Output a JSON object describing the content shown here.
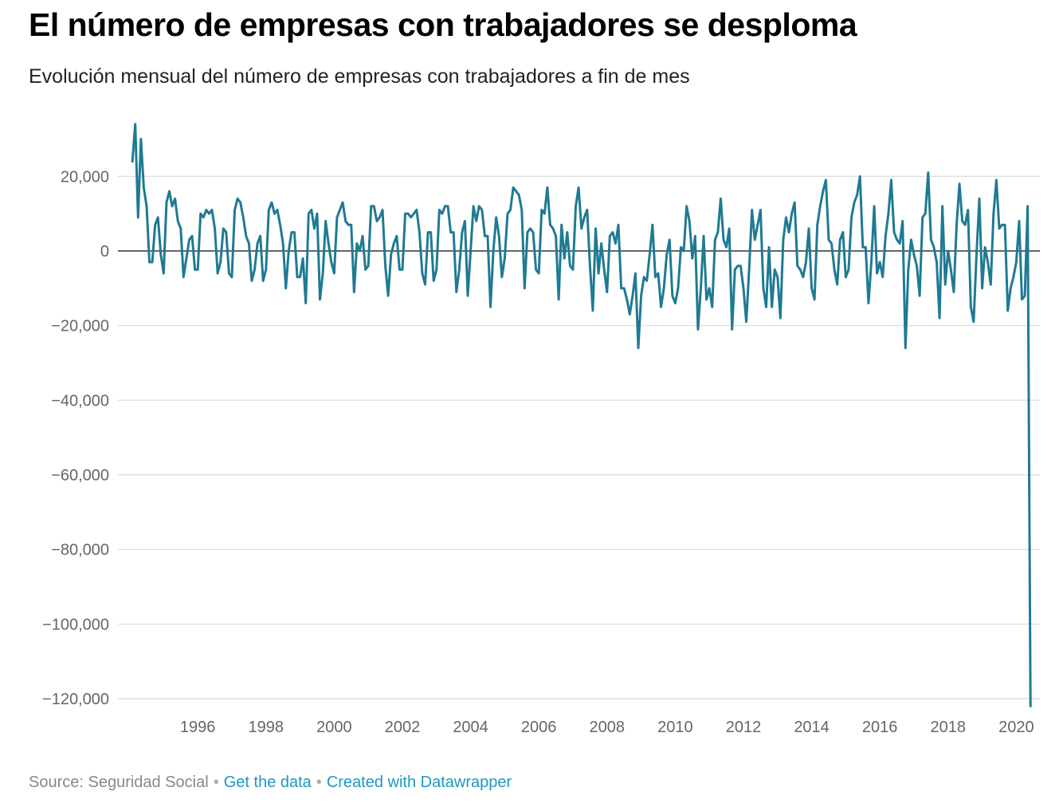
{
  "title": "El número de empresas con trabajadores se desploma",
  "subtitle": "Evolución mensual del número de empresas con trabajadores a fin de mes",
  "footer": {
    "source": "Source: Seguridad Social",
    "get_data": "Get the data",
    "created_with": "Created with Datawrapper",
    "separator": "•"
  },
  "colors": {
    "line": "#1f7a93",
    "grid": "#d9d9d9",
    "zero_line": "#333333",
    "tick_label": "#666666",
    "link": "#1d98c0"
  },
  "chart_data": {
    "type": "line",
    "title": "El número de empresas con trabajadores se desploma",
    "subtitle": "Evolución mensual del número de empresas con trabajadores a fin de mes",
    "xlabel": "",
    "ylabel": "",
    "xlim": [
      1994.08,
      2020.33
    ],
    "ylim": [
      -122000,
      34000
    ],
    "grid": true,
    "legend": "none",
    "y_ticks": [
      20000,
      0,
      -20000,
      -40000,
      -60000,
      -80000,
      -100000,
      -120000
    ],
    "y_tick_labels": [
      "20,000",
      "0",
      "−20,000",
      "−40,000",
      "−60,000",
      "−80,000",
      "−100,000",
      "−120,000"
    ],
    "x_ticks": [
      1996,
      1998,
      2000,
      2002,
      2004,
      2006,
      2008,
      2010,
      2012,
      2014,
      2016,
      2018,
      2020
    ],
    "x_tick_labels": [
      "1996",
      "1998",
      "2000",
      "2002",
      "2004",
      "2006",
      "2008",
      "2010",
      "2012",
      "2014",
      "2016",
      "2018",
      "2020"
    ],
    "series": [
      {
        "x_start": "1994-02",
        "frequency": "monthly",
        "values": [
          24000,
          34000,
          9000,
          30000,
          17000,
          12000,
          -3000,
          -3000,
          7000,
          9000,
          -1000,
          -6000,
          13000,
          16000,
          12000,
          14000,
          8000,
          6000,
          -7000,
          -2000,
          3000,
          4000,
          -5000,
          -5000,
          10000,
          9000,
          11000,
          10000,
          11000,
          6000,
          -6000,
          -3000,
          6000,
          5000,
          -6000,
          -7000,
          11000,
          14000,
          13000,
          9000,
          4000,
          2000,
          -8000,
          -5000,
          2000,
          4000,
          -8000,
          -5000,
          11000,
          13000,
          10000,
          11000,
          7000,
          2000,
          -10000,
          0,
          5000,
          5000,
          -7000,
          -7000,
          -2000,
          -14000,
          10000,
          11000,
          6000,
          10000,
          -13000,
          -6000,
          8000,
          2000,
          -3000,
          -6000,
          9000,
          11000,
          13000,
          8000,
          7000,
          7000,
          -11000,
          2000,
          0,
          4000,
          -5000,
          -4000,
          12000,
          12000,
          8000,
          9000,
          11000,
          -4000,
          -12000,
          -1000,
          2000,
          4000,
          -5000,
          -5000,
          10000,
          10000,
          9000,
          10000,
          11000,
          5000,
          -6000,
          -9000,
          5000,
          5000,
          -8000,
          -5000,
          11000,
          10000,
          12000,
          12000,
          5000,
          5000,
          -11000,
          -5000,
          5000,
          8000,
          -12000,
          0,
          12000,
          8000,
          12000,
          11000,
          4000,
          4000,
          -15000,
          0,
          9000,
          4000,
          -7000,
          -2000,
          10000,
          11000,
          17000,
          16000,
          15000,
          11000,
          -10000,
          5000,
          6000,
          5000,
          -5000,
          -6000,
          11000,
          10000,
          17000,
          7000,
          6000,
          4000,
          -13000,
          7000,
          -2000,
          5000,
          -4000,
          -5000,
          12000,
          17000,
          6000,
          9000,
          11000,
          -4000,
          -16000,
          6000,
          -6000,
          2000,
          -5000,
          -11000,
          4000,
          5000,
          2000,
          7000,
          -10000,
          -10000,
          -13000,
          -17000,
          -12000,
          -6000,
          -26000,
          -12000,
          -7000,
          -8000,
          -1000,
          7000,
          -7000,
          -6000,
          -15000,
          -10000,
          -1000,
          3000,
          -12000,
          -14000,
          -10000,
          1000,
          0,
          12000,
          8000,
          -2000,
          4000,
          -21000,
          -10000,
          4000,
          -13000,
          -10000,
          -15000,
          3000,
          5000,
          14000,
          3000,
          1000,
          6000,
          -21000,
          -5000,
          -4000,
          -4000,
          -10000,
          -19000,
          -5000,
          11000,
          3000,
          7000,
          11000,
          -10000,
          -15000,
          1000,
          -15000,
          -5000,
          -7000,
          -18000,
          3000,
          9000,
          5000,
          10000,
          13000,
          -4000,
          -5000,
          -7000,
          -3000,
          6000,
          -10000,
          -13000,
          7000,
          12000,
          16000,
          19000,
          3000,
          2000,
          -5000,
          -9000,
          3000,
          5000,
          -7000,
          -5000,
          9000,
          13000,
          15000,
          20000,
          1000,
          1000,
          -14000,
          -3000,
          12000,
          -6000,
          -3000,
          -7000,
          4000,
          10000,
          19000,
          5000,
          3000,
          2000,
          8000,
          -26000,
          -5000,
          3000,
          -1000,
          -4000,
          -12000,
          9000,
          10000,
          21000,
          3000,
          1000,
          -3000,
          -18000,
          12000,
          -9000,
          0,
          -5000,
          -11000,
          7000,
          18000,
          8000,
          7000,
          11000,
          -15000,
          -19000,
          -1000,
          14000,
          -10000,
          1000,
          -3000,
          -9000,
          10000,
          19000,
          6000,
          7000,
          7000,
          -16000,
          -10000,
          -7000,
          -3000,
          8000,
          -13000,
          -12000,
          12000,
          -122000
        ]
      }
    ]
  }
}
